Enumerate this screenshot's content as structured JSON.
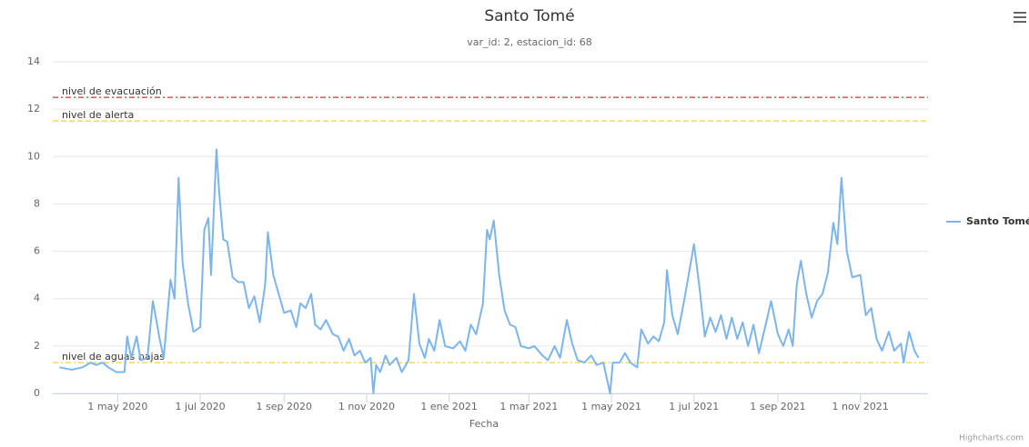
{
  "chart_data": {
    "type": "line",
    "title": "Santo Tomé",
    "subtitle": "var_id: 2, estacion_id: 68",
    "x_axis_title": "Fecha",
    "x": [
      "2020-03-19",
      "2020-03-28",
      "2020-04-05",
      "2020-04-11",
      "2020-04-15",
      "2020-04-20",
      "2020-04-24",
      "2020-04-30",
      "2020-05-06",
      "2020-05-08",
      "2020-05-11",
      "2020-05-15",
      "2020-05-18",
      "2020-05-23",
      "2020-05-27",
      "2020-06-01",
      "2020-06-04",
      "2020-06-09",
      "2020-06-12",
      "2020-06-15",
      "2020-06-18",
      "2020-06-22",
      "2020-06-26",
      "2020-07-01",
      "2020-07-04",
      "2020-07-07",
      "2020-07-09",
      "2020-07-13",
      "2020-07-15",
      "2020-07-18",
      "2020-07-21",
      "2020-07-25",
      "2020-07-29",
      "2020-08-02",
      "2020-08-06",
      "2020-08-10",
      "2020-08-14",
      "2020-08-18",
      "2020-08-20",
      "2020-08-24",
      "2020-08-28",
      "2020-09-01",
      "2020-09-06",
      "2020-09-10",
      "2020-09-13",
      "2020-09-17",
      "2020-09-21",
      "2020-09-24",
      "2020-09-28",
      "2020-10-02",
      "2020-10-07",
      "2020-10-11",
      "2020-10-15",
      "2020-10-19",
      "2020-10-23",
      "2020-10-27",
      "2020-10-31",
      "2020-11-04",
      "2020-11-06",
      "2020-11-08",
      "2020-11-11",
      "2020-11-15",
      "2020-11-18",
      "2020-11-23",
      "2020-11-27",
      "2020-12-02",
      "2020-12-06",
      "2020-12-10",
      "2020-12-14",
      "2020-12-17",
      "2020-12-21",
      "2020-12-25",
      "2020-12-29",
      "2021-01-04",
      "2021-01-09",
      "2021-01-13",
      "2021-01-17",
      "2021-01-21",
      "2021-01-26",
      "2021-01-29",
      "2021-01-31",
      "2021-02-03",
      "2021-02-07",
      "2021-02-11",
      "2021-02-15",
      "2021-02-19",
      "2021-02-23",
      "2021-03-01",
      "2021-03-05",
      "2021-03-11",
      "2021-03-15",
      "2021-03-20",
      "2021-03-24",
      "2021-03-29",
      "2021-04-02",
      "2021-04-06",
      "2021-04-11",
      "2021-04-16",
      "2021-04-20",
      "2021-04-25",
      "2021-04-30",
      "2021-05-02",
      "2021-05-07",
      "2021-05-11",
      "2021-05-15",
      "2021-05-20",
      "2021-05-23",
      "2021-05-28",
      "2021-06-01",
      "2021-06-05",
      "2021-06-09",
      "2021-06-11",
      "2021-06-15",
      "2021-06-19",
      "2021-06-24",
      "2021-07-01",
      "2021-07-05",
      "2021-07-09",
      "2021-07-13",
      "2021-07-17",
      "2021-07-21",
      "2021-07-25",
      "2021-07-29",
      "2021-08-02",
      "2021-08-06",
      "2021-08-10",
      "2021-08-14",
      "2021-08-18",
      "2021-08-23",
      "2021-08-27",
      "2021-09-01",
      "2021-09-05",
      "2021-09-09",
      "2021-09-12",
      "2021-09-15",
      "2021-09-18",
      "2021-09-22",
      "2021-09-26",
      "2021-09-30",
      "2021-10-04",
      "2021-10-08",
      "2021-10-12",
      "2021-10-15",
      "2021-10-18",
      "2021-10-22",
      "2021-10-26",
      "2021-11-01",
      "2021-11-05",
      "2021-11-09",
      "2021-11-13",
      "2021-11-17",
      "2021-11-22",
      "2021-11-26",
      "2021-12-01",
      "2021-12-03",
      "2021-12-07",
      "2021-12-11",
      "2021-12-14"
    ],
    "series": [
      {
        "name": "Santo Tomé",
        "color": "#7cb5ec",
        "values": [
          1.1,
          1.0,
          1.1,
          1.3,
          1.2,
          1.3,
          1.1,
          0.9,
          0.9,
          2.4,
          1.5,
          2.4,
          1.4,
          1.5,
          3.9,
          2.3,
          1.5,
          4.8,
          4.0,
          9.1,
          5.5,
          3.8,
          2.6,
          2.8,
          6.9,
          7.4,
          5.0,
          10.3,
          8.5,
          6.5,
          6.4,
          4.9,
          4.7,
          4.7,
          3.6,
          4.1,
          3.0,
          4.6,
          6.8,
          5.0,
          4.2,
          3.4,
          3.5,
          2.8,
          3.8,
          3.6,
          4.2,
          2.9,
          2.7,
          3.1,
          2.5,
          2.4,
          1.8,
          2.3,
          1.6,
          1.8,
          1.3,
          1.5,
          0.0,
          1.2,
          0.9,
          1.6,
          1.2,
          1.5,
          0.9,
          1.4,
          4.2,
          2.1,
          1.5,
          2.3,
          1.8,
          3.1,
          2.0,
          1.9,
          2.2,
          1.8,
          2.9,
          2.5,
          3.8,
          6.9,
          6.5,
          7.3,
          5.0,
          3.5,
          2.9,
          2.8,
          2.0,
          1.9,
          2.0,
          1.6,
          1.4,
          2.0,
          1.5,
          3.1,
          2.1,
          1.4,
          1.3,
          1.6,
          1.2,
          1.3,
          0.0,
          1.3,
          1.3,
          1.7,
          1.3,
          1.1,
          2.7,
          2.1,
          2.4,
          2.2,
          3.0,
          5.2,
          3.3,
          2.5,
          4.0,
          6.3,
          4.5,
          2.4,
          3.2,
          2.6,
          3.3,
          2.3,
          3.2,
          2.3,
          3.0,
          2.0,
          2.9,
          1.7,
          2.9,
          3.9,
          2.5,
          2.0,
          2.7,
          2.0,
          4.6,
          5.6,
          4.2,
          3.2,
          3.9,
          4.2,
          5.1,
          7.2,
          6.3,
          9.1,
          6.0,
          4.9,
          5.0,
          3.3,
          3.6,
          2.3,
          1.8,
          2.6,
          1.8,
          2.1,
          1.3,
          2.6,
          1.8,
          1.5
        ]
      }
    ],
    "xlim": [
      "2020-03-14",
      "2021-12-21"
    ],
    "xticks": [
      {
        "value": "2020-05-01",
        "label": "1 may 2020"
      },
      {
        "value": "2020-07-01",
        "label": "1 jul 2020"
      },
      {
        "value": "2020-09-01",
        "label": "1 sep 2020"
      },
      {
        "value": "2020-11-01",
        "label": "1 nov 2020"
      },
      {
        "value": "2021-01-01",
        "label": "1 ene 2021"
      },
      {
        "value": "2021-03-01",
        "label": "1 mar 2021"
      },
      {
        "value": "2021-05-01",
        "label": "1 may 2021"
      },
      {
        "value": "2021-07-01",
        "label": "1 jul 2021"
      },
      {
        "value": "2021-09-01",
        "label": "1 sep 2021"
      },
      {
        "value": "2021-11-01",
        "label": "1 nov 2021"
      }
    ],
    "ylim": [
      0,
      14
    ],
    "yticks": [
      0,
      2,
      4,
      6,
      8,
      10,
      12,
      14
    ],
    "grid": true,
    "plot_lines": [
      {
        "label": "nivel de evacuación",
        "value": 12.5,
        "color": "#cc0000",
        "dash": "dashdot"
      },
      {
        "label": "nivel de alerta",
        "value": 11.5,
        "color": "#e6c619",
        "dash": "dash"
      },
      {
        "label": "nivel de aguas bajas",
        "value": 1.3,
        "color": "#e6c619",
        "dash": "dashdot"
      }
    ],
    "legend_position": "right",
    "credits": "Highcharts.com"
  }
}
